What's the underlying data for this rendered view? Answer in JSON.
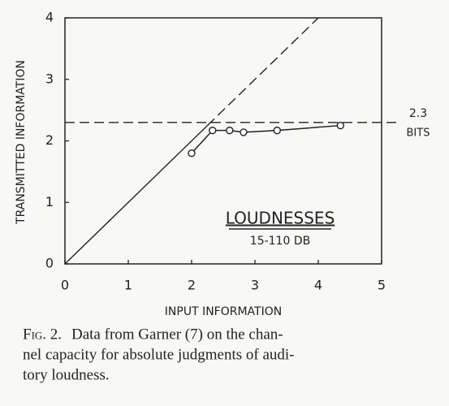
{
  "chart_data": {
    "type": "line",
    "x_label": "INPUT INFORMATION",
    "y_label": "TRANSMITTED INFORMATION",
    "x": [
      2.0,
      2.33,
      2.6,
      2.82,
      3.35,
      4.35
    ],
    "series": [
      {
        "name": "LOUDNESSES",
        "subtitle": "15-110 DB",
        "color": "#222222",
        "values": [
          1.8,
          2.17,
          2.17,
          2.14,
          2.17,
          2.25
        ]
      }
    ],
    "xlim": [
      0,
      5
    ],
    "xticks": [
      0,
      1,
      2,
      3,
      4,
      5
    ],
    "ylim": [
      0,
      4
    ],
    "yticks": [
      0,
      1,
      2,
      3,
      4
    ],
    "lines": [
      {
        "x": [
          0,
          2.25
        ],
        "y": [
          0,
          2.25
        ],
        "dash": false
      },
      {
        "x": [
          2.25,
          4
        ],
        "y": [
          2.25,
          4
        ],
        "dash": true
      }
    ],
    "hline": {
      "value": 2.3,
      "label": "BITS",
      "dash": true
    },
    "caption": {
      "figure": "Fig. 2.",
      "lines": [
        "Data from Garner (7) on the chan-",
        "nel capacity for absolute judgments of audi-",
        "tory loudness."
      ]
    }
  }
}
